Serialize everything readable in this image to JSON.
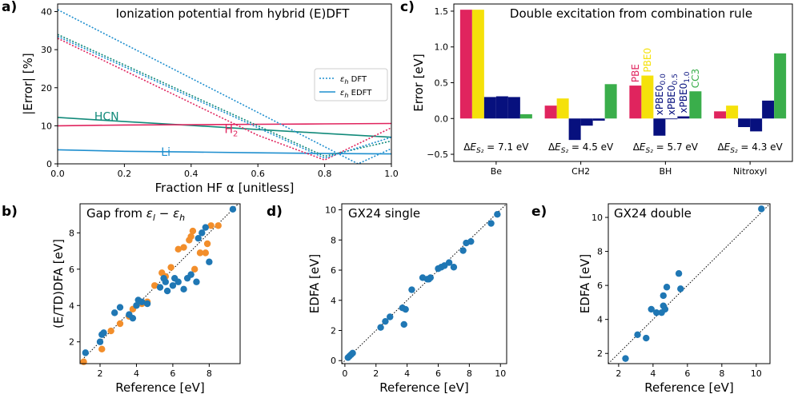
{
  "chart_data": [
    {
      "panel": "a)",
      "type": "line",
      "title": "Ionization potential from hybrid (E)DFT",
      "xlabel": "Fraction HF α [unitless]",
      "ylabel": "|Error| [%]",
      "xlim": [
        0,
        1.0
      ],
      "ylim": [
        0,
        42
      ],
      "xticks": [
        "0.0",
        "0.2",
        "0.4",
        "0.6",
        "0.8",
        "1.0"
      ],
      "yticks": [
        "0",
        "10",
        "20",
        "30",
        "40"
      ],
      "legend": {
        "location": "center-right",
        "entries": [
          "εh DFT",
          "εh EDFT"
        ]
      },
      "series": [
        {
          "name": "HCN",
          "kind": "EDFT",
          "color": "#128a7a",
          "x": [
            0,
            0.2,
            0.4,
            0.6,
            0.8,
            1.0
          ],
          "y": [
            12.2,
            11.1,
            10.1,
            9.0,
            8.0,
            7.0
          ]
        },
        {
          "name": "H2",
          "kind": "EDFT",
          "color": "#e0245e",
          "x": [
            0,
            0.2,
            0.4,
            0.6,
            0.8,
            1.0
          ],
          "y": [
            10.0,
            10.2,
            10.3,
            10.4,
            10.5,
            10.6
          ]
        },
        {
          "name": "Li",
          "kind": "EDFT",
          "color": "#1f8fcf",
          "x": [
            0,
            0.2,
            0.4,
            0.6,
            0.8,
            1.0
          ],
          "y": [
            3.7,
            3.3,
            3.1,
            2.9,
            2.7,
            2.6
          ]
        },
        {
          "name": "H2",
          "kind": "DFT",
          "color": "#e0245e",
          "x": [
            0,
            0.2,
            0.4,
            0.6,
            0.8,
            1.0
          ],
          "y": [
            33.0,
            24.5,
            16.0,
            7.5,
            1.0,
            9.5
          ]
        },
        {
          "name": "HCN",
          "kind": "DFT",
          "color": "#128a7a",
          "x": [
            0,
            0.2,
            0.4,
            0.6,
            0.8,
            1.0
          ],
          "y": [
            34.0,
            26.0,
            18.0,
            10.0,
            2.0,
            6.0
          ]
        },
        {
          "name": "HCN",
          "kind": "DFT",
          "color": "#1f8fcf",
          "x": [
            0,
            0.2,
            0.4,
            0.6,
            0.8,
            1.0
          ],
          "y": [
            33.5,
            25.5,
            17.5,
            9.5,
            1.5,
            7.0
          ]
        },
        {
          "name": "Li",
          "kind": "DFT",
          "color": "#1f8fcf",
          "x": [
            0,
            0.2,
            0.4,
            0.6,
            0.8,
            0.9,
            1.0
          ],
          "y": [
            40.5,
            31.5,
            22.5,
            13.5,
            4.5,
            0.0,
            4.0
          ]
        }
      ],
      "labels": [
        {
          "text": "HCN",
          "color": "#128a7a"
        },
        {
          "text": "H",
          "sub": "2",
          "color": "#e0245e"
        },
        {
          "text": "Li",
          "color": "#1f8fcf"
        }
      ]
    },
    {
      "panel": "c)",
      "type": "bar",
      "title": "Double excitation from combination rule",
      "ylabel": "Error [eV]",
      "xlabel": "",
      "ylim": [
        -0.6,
        1.6
      ],
      "yticks": [
        "−0.5",
        "0.0",
        "0.5",
        "1.0",
        "1.5"
      ],
      "categories": [
        "Be",
        "CH2",
        "BH",
        "Nitroxyl"
      ],
      "series": [
        {
          "name": "PBE",
          "color": "#e0245e",
          "values": [
            1.52,
            0.18,
            0.46,
            0.1
          ]
        },
        {
          "name": "PBE0",
          "color": "#f5e10a",
          "values": [
            1.52,
            0.28,
            0.6,
            0.18
          ]
        },
        {
          "name": "xPBE0_0.0",
          "color": "#07107e",
          "values": [
            0.3,
            -0.3,
            -0.24,
            -0.12
          ]
        },
        {
          "name": "xPBE0_0.5",
          "color": "#07107e",
          "values": [
            0.31,
            -0.1,
            -0.01,
            -0.18
          ]
        },
        {
          "name": "xPBE0_1.0",
          "color": "#07107e",
          "values": [
            0.3,
            -0.03,
            0.03,
            0.25
          ]
        },
        {
          "name": "CC3",
          "color": "#3aae4b",
          "values": [
            0.06,
            0.48,
            0.38,
            0.91
          ]
        }
      ],
      "bar_labels": [
        {
          "text": "PBE",
          "color": "#e0245e"
        },
        {
          "text": "PBE0",
          "color": "#f5e10a"
        },
        {
          "text": "xPBE0",
          "sub": "0.0",
          "color": "#07107e"
        },
        {
          "text": "xPBE0",
          "sub": "0.5",
          "color": "#07107e"
        },
        {
          "text": "xPBE0",
          "sub": "1.0",
          "color": "#07107e"
        },
        {
          "text": "CC3",
          "color": "#3aae4b"
        }
      ],
      "annotations": [
        {
          "prefix": "ΔE",
          "sub": "S₂",
          "text": " = 7.1 eV"
        },
        {
          "prefix": "ΔE",
          "sub": "S₂",
          "text": " = 4.5 eV"
        },
        {
          "prefix": "ΔE",
          "sub": "S₂",
          "text": " = 5.7 eV"
        },
        {
          "prefix": "ΔE",
          "sub": "S₂",
          "text": " = 4.3 eV"
        }
      ]
    },
    {
      "panel": "b)",
      "type": "scatter",
      "title": "Gap from εl − εh",
      "xlabel": "Reference [eV]",
      "ylabel": "(E/TD)DFA [eV]",
      "xlim": [
        0.9,
        9.7
      ],
      "ylim": [
        0.8,
        9.6
      ],
      "xticks": [
        2,
        4,
        6,
        8
      ],
      "yticks": [
        2,
        4,
        6,
        8
      ],
      "series": [
        {
          "name": "orange",
          "color": "#f28e2b",
          "x": [
            1.1,
            2.1,
            2.6,
            3.1,
            3.6,
            3.8,
            4.3,
            4.6,
            5.0,
            5.4,
            5.6,
            5.9,
            6.3,
            6.6,
            6.9,
            7.0,
            7.1,
            7.2,
            7.5,
            7.8,
            7.9,
            8.1,
            8.5
          ],
          "y": [
            0.9,
            1.6,
            2.6,
            3.0,
            3.4,
            3.8,
            4.1,
            4.2,
            5.1,
            5.8,
            5.6,
            6.1,
            7.1,
            7.2,
            7.6,
            7.8,
            8.1,
            6.0,
            6.9,
            6.9,
            7.4,
            8.4,
            8.4
          ]
        },
        {
          "name": "blue",
          "color": "#1f77b4",
          "x": [
            1.2,
            2.0,
            2.1,
            2.2,
            2.8,
            3.1,
            3.6,
            3.8,
            4.0,
            4.1,
            4.3,
            4.6,
            5.3,
            5.5,
            5.6,
            5.7,
            6.0,
            6.1,
            6.3,
            6.6,
            6.8,
            7.0,
            7.3,
            7.4,
            7.6,
            7.8,
            8.0,
            9.3
          ],
          "y": [
            1.4,
            2.0,
            2.4,
            2.5,
            3.6,
            3.9,
            3.5,
            3.3,
            4.0,
            4.3,
            4.2,
            4.1,
            5.0,
            5.5,
            5.3,
            4.8,
            5.1,
            5.5,
            5.3,
            4.9,
            5.5,
            5.7,
            5.3,
            7.7,
            8.0,
            8.3,
            6.4,
            9.3
          ]
        }
      ]
    },
    {
      "panel": "d)",
      "type": "scatter",
      "title": "GX24 single",
      "xlabel": "Reference [eV]",
      "ylabel": "EDFA [eV]",
      "xlim": [
        -0.2,
        10.4
      ],
      "ylim": [
        -0.2,
        10.4
      ],
      "xticks": [
        0,
        2,
        4,
        6,
        8,
        10
      ],
      "yticks": [
        0,
        2,
        4,
        6,
        8,
        10
      ],
      "series": [
        {
          "name": "blue",
          "color": "#1f77b4",
          "x": [
            0.2,
            0.3,
            0.4,
            0.5,
            2.3,
            2.6,
            2.9,
            3.7,
            3.8,
            3.9,
            4.3,
            5.0,
            5.3,
            5.4,
            5.5,
            6.0,
            6.2,
            6.4,
            6.7,
            7.0,
            7.6,
            7.8,
            8.1,
            9.4,
            9.8
          ],
          "y": [
            0.2,
            0.3,
            0.4,
            0.5,
            2.2,
            2.6,
            2.9,
            3.5,
            2.4,
            3.4,
            4.7,
            5.5,
            5.4,
            5.4,
            5.5,
            6.1,
            6.2,
            6.3,
            6.5,
            6.2,
            7.3,
            7.8,
            7.9,
            9.1,
            9.7
          ]
        }
      ]
    },
    {
      "panel": "e)",
      "type": "scatter",
      "title": "GX24 double",
      "xlabel": "Reference [eV]",
      "ylabel": "EDFA [eV]",
      "xlim": [
        1.4,
        10.8
      ],
      "ylim": [
        1.4,
        10.8
      ],
      "xticks": [
        2,
        4,
        6,
        8,
        10
      ],
      "yticks": [
        2,
        4,
        6,
        8,
        10
      ],
      "series": [
        {
          "name": "blue",
          "color": "#1f77b4",
          "x": [
            2.4,
            3.1,
            3.6,
            3.9,
            4.2,
            4.5,
            4.6,
            4.6,
            4.7,
            4.8,
            5.5,
            5.6,
            10.3
          ],
          "y": [
            1.7,
            3.1,
            2.9,
            4.6,
            4.4,
            4.4,
            4.8,
            5.4,
            4.6,
            5.9,
            6.7,
            5.8,
            10.5
          ]
        }
      ]
    }
  ]
}
